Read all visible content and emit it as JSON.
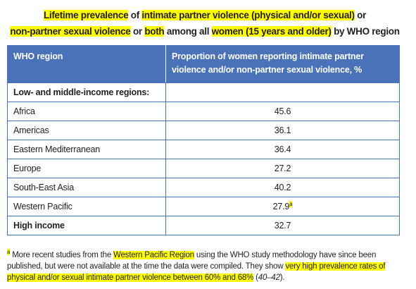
{
  "title": {
    "lines": [
      [
        "Lifetime prevalence",
        " of ",
        "intimate partner violence (physical and/or sexual)",
        " or"
      ],
      [
        "non-partner sexual violence",
        " or ",
        "both",
        " among all ",
        "women (15 years and older)",
        " by WHO region"
      ]
    ]
  },
  "table": {
    "header": [
      "WHO region",
      "Proportion of women reporting intimate partner violence and/or non-partner sexual violence, %"
    ],
    "section": "Low- and middle-income regions:",
    "rows": [
      [
        "Africa",
        45.6
      ],
      [
        "Americas",
        36.1
      ],
      [
        "Eastern Mediterranean",
        36.4
      ],
      [
        "Europe",
        27.2
      ],
      [
        "South-East Asia",
        40.2
      ],
      [
        "Western Pacific",
        27.9,
        "a"
      ],
      [
        "High income",
        32.7
      ]
    ]
  },
  "footnote": {
    "marker": "a",
    "parts": [
      " More recent studies from the ",
      "Western Pacific Region",
      " using the WHO study methodology have since been published, but were not available at the time the data were compiled. They show ",
      "very high prevalence rates of physical and/or sexual intimate partner violence between 60% and 68%",
      " (",
      "40–42",
      ")."
    ]
  }
}
